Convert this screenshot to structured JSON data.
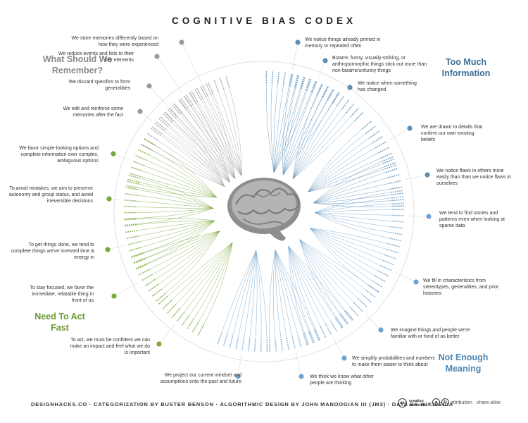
{
  "title": "COGNITIVE BIAS CODEX",
  "quadrants": {
    "remember": "What Should We Remember?",
    "information": "Too Much Information",
    "fast": "Need To Act Fast",
    "meaning": "Not Enough Meaning"
  },
  "categories": [
    {
      "text": "We store memories differently based on how they were experienced",
      "side": "left",
      "group": "remember"
    },
    {
      "text": "We reduce events and lists to their key elements",
      "side": "left",
      "group": "remember"
    },
    {
      "text": "We discard specifics to form generalities",
      "side": "left",
      "group": "remember"
    },
    {
      "text": "We edit and reinforce some memories after the fact",
      "side": "left",
      "group": "remember"
    },
    {
      "text": "We favor simple-looking options and complete information over complex, ambiguous options",
      "side": "left",
      "group": "fast"
    },
    {
      "text": "To avoid mistakes, we aim to preserve autonomy and group status, and avoid irreversible decisions",
      "side": "left",
      "group": "fast"
    },
    {
      "text": "To get things done, we tend to complete things we've invested time & energy in",
      "side": "left",
      "group": "fast"
    },
    {
      "text": "To stay focused, we favor the immediate, relatable thing in front of us",
      "side": "left",
      "group": "fast"
    },
    {
      "text": "To act, we must be confident we can make an impact and feel what we do is important",
      "side": "left",
      "group": "fast"
    },
    {
      "text": "We project our current mindset and assumptions onto the past and future",
      "side": "left",
      "group": "meaning"
    },
    {
      "text": "We notice things already primed in memory or repeated often",
      "side": "right",
      "group": "information"
    },
    {
      "text": "Bizarre, funny, visually-striking, or anthropomorphic things stick out more than non-bizarre/unfunny things",
      "side": "right",
      "group": "information"
    },
    {
      "text": "We notice when something has changed",
      "side": "right",
      "group": "information"
    },
    {
      "text": "We are drawn to details that confirm our own existing beliefs",
      "side": "right",
      "group": "information"
    },
    {
      "text": "We notice flaws in others more easily than than we notice flaws in ourselves",
      "side": "right",
      "group": "information"
    },
    {
      "text": "We tend to find stories and patterns even when looking at sparse data",
      "side": "right",
      "group": "meaning"
    },
    {
      "text": "We fill in characteristics from stereotypes, generalities, and prior histories",
      "side": "right",
      "group": "meaning"
    },
    {
      "text": "We imagine things and people we're familiar with or fond of as better",
      "side": "right",
      "group": "meaning"
    },
    {
      "text": "We simplify probabilities and numbers to make them easier to think about",
      "side": "right",
      "group": "meaning"
    },
    {
      "text": "We think we know what other people are thinking",
      "side": "right",
      "group": "meaning"
    }
  ],
  "colors": {
    "remember": "#9a9a9a",
    "information": "#5a8fb8",
    "fast": "#7aa83a",
    "meaning": "#6fa3cf"
  },
  "footer": {
    "left": "DESIGNHACKS.CO · CATEGORIZATION BY BUSTER BENSON · ALGORITHMIC DESIGN BY JOHN MANOOGIAN III (JM3) · DATA BY WIKIPEDIA",
    "cc_mark": "cc",
    "cc_label_1": "creative",
    "cc_label_2": "commons",
    "license": "attribution · share-alike"
  }
}
